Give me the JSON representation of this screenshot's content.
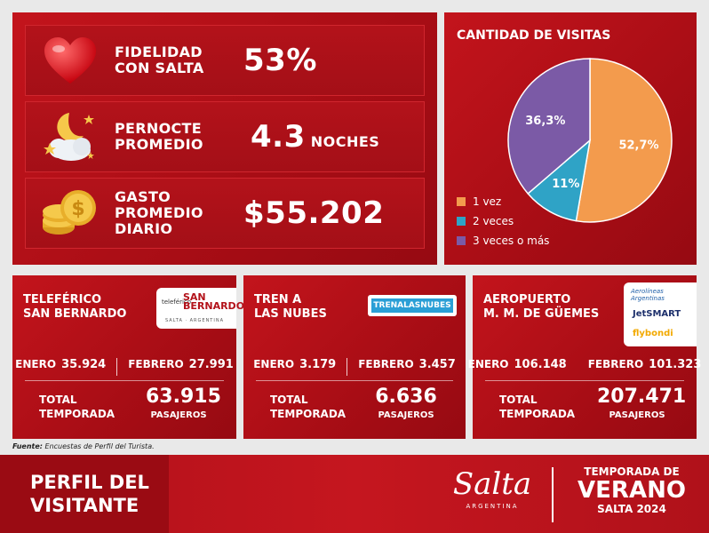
{
  "kpis": [
    {
      "label_line1": "FIDELIDAD",
      "label_line2": "CON SALTA",
      "label_line3": "",
      "value": "53%",
      "unit": "",
      "icon": "heart-icon"
    },
    {
      "label_line1": "PERNOCTE",
      "label_line2": "PROMEDIO",
      "label_line3": "",
      "value": "4.3",
      "unit": "NOCHES",
      "icon": "moon-cloud-icon"
    },
    {
      "label_line1": "GASTO",
      "label_line2": "PROMEDIO",
      "label_line3": "DIARIO",
      "value": "$55.202",
      "unit": "",
      "icon": "coins-icon"
    }
  ],
  "chart_data": {
    "type": "pie",
    "title": "CANTIDAD DE VISITAS",
    "categories": [
      "1 vez",
      "2 veces",
      "3 veces o más"
    ],
    "values": [
      52.7,
      11,
      36.3
    ],
    "labels": [
      "52,7%",
      "11%",
      "36,3%"
    ],
    "colors": [
      "#f39b4d",
      "#2fa3c6",
      "#7b5aa6"
    ],
    "legend_position": "bottom-left"
  },
  "attractions": [
    {
      "title_line1": "TELEFÉRICO",
      "title_line2": "SAN BERNARDO",
      "logo_text": "teleférico SAN BERNARDO",
      "logo_sub": "SALTA · ARGENTINA",
      "month1_label": "ENERO",
      "month1_value": "35.924",
      "month2_label": "FEBRERO",
      "month2_value": "27.991",
      "total_label_line1": "TOTAL",
      "total_label_line2": "TEMPORADA",
      "total_value": "63.915",
      "total_unit": "PASAJEROS"
    },
    {
      "title_line1": "TREN A",
      "title_line2": "LAS NUBES",
      "logo_text": "TRENALASNUBES",
      "month1_label": "ENERO",
      "month1_value": "3.179",
      "month2_label": "FEBRERO",
      "month2_value": "3.457",
      "total_label_line1": "TOTAL",
      "total_label_line2": "TEMPORADA",
      "total_value": "6.636",
      "total_unit": "PASAJEROS"
    },
    {
      "title_line1": "AEROPUERTO",
      "title_line2": "M. M. DE GÜEMES",
      "logo_aerolineas": "Aerolíneas Argentinas",
      "logo_jetsmart": "JetSMART",
      "logo_flybondi": "flybondi",
      "month1_label": "ENERO",
      "month1_value": "106.148",
      "month2_label": "FEBRERO",
      "month2_value": "101.323",
      "total_label_line1": "TOTAL",
      "total_label_line2": "TEMPORADA",
      "total_value": "207.471",
      "total_unit": "PASAJEROS"
    }
  ],
  "source": {
    "label": "Fuente:",
    "text": "Encuestas de Perfil del Turista."
  },
  "footer": {
    "title_line1": "PERFIL DEL",
    "title_line2": "VISITANTE",
    "brand": "Salta",
    "brand_sub": "ARGENTINA",
    "season_line1": "TEMPORADA DE",
    "season_line2": "VERANO",
    "season_line3": "SALTA 2024"
  },
  "colors": {
    "primary_red": "#b3121a",
    "dark_red": "#8f0a11",
    "accent_orange": "#f39b4d",
    "accent_blue": "#2fa3c6",
    "accent_purple": "#7b5aa6"
  }
}
